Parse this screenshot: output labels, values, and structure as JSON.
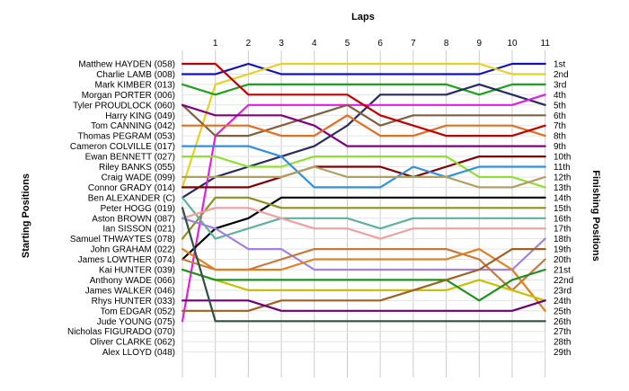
{
  "chart_data": {
    "type": "line",
    "title": "",
    "xlabel": "Laps",
    "ylabel_left": "Starting Positions",
    "ylabel_right": "Finishing Positions",
    "x": [
      0,
      1,
      2,
      3,
      4,
      5,
      6,
      7,
      8,
      9,
      10,
      11
    ],
    "x_tick_labels": [
      "1",
      "2",
      "3",
      "4",
      "5",
      "6",
      "7",
      "8",
      "9",
      "10",
      "11"
    ],
    "y_range": [
      1,
      29
    ],
    "y_inverted": true,
    "grid": true,
    "starting_positions": [
      "Matthew HAYDEN (058)",
      "Charlie LAMB (008)",
      "Mark KIMBER (013)",
      "Morgan PORTER (006)",
      "Tyler PROUDLOCK (060)",
      "Harry KING (049)",
      "Tom CANNING (042)",
      "Thomas PEGRAM (053)",
      "Cameron COLVILLE (017)",
      "Ewan BENNETT (027)",
      "Riley BANKS (055)",
      "Craig WADE (099)",
      "Connor GRADY (014)",
      "Ben ALEXANDER (C)",
      "Peter HOGG (019)",
      "Aston BROWN (087)",
      "Ian SISSON (021)",
      "Samuel THWAYTES (078)",
      "John GRAHAM (022)",
      "James LOWTHER (074)",
      "Kai HUNTER (039)",
      "Anthony WADE (066)",
      "James WALKER (046)",
      "Rhys HUNTER (033)",
      "Tom EDGAR (052)",
      "Jude YOUNG (075)",
      "Nicholas FIGURADO (070)",
      "Oliver CLARKE (062)",
      "Alex LLOYD (048)"
    ],
    "finishing_positions": [
      "1st",
      "2nd",
      "3rd",
      "4th",
      "5th",
      "6th",
      "7th",
      "8th",
      "9th",
      "10th",
      "11th",
      "12th",
      "13th",
      "14th",
      "15th",
      "16th",
      "17th",
      "18th",
      "19th",
      "20th",
      "21st",
      "22nd",
      "23rd",
      "24th",
      "25th",
      "26th",
      "27th",
      "28th",
      "29th"
    ],
    "series": [
      {
        "color": "#1010c0",
        "values": [
          2,
          2,
          1,
          2,
          2,
          2,
          2,
          2,
          2,
          2,
          1,
          1
        ]
      },
      {
        "color": "#e8d020",
        "values": [
          13,
          3,
          2,
          1,
          1,
          1,
          1,
          1,
          1,
          1,
          2,
          2
        ]
      },
      {
        "color": "#20a020",
        "values": [
          3,
          4,
          3,
          3,
          3,
          3,
          3,
          3,
          3,
          4,
          3,
          3
        ]
      },
      {
        "color": "#2a2a60",
        "values": [
          14,
          12,
          11,
          10,
          9,
          7,
          4,
          4,
          4,
          3,
          4,
          5
        ]
      },
      {
        "color": "#e020e0",
        "values": [
          26,
          8,
          5,
          5,
          5,
          5,
          5,
          5,
          5,
          5,
          5,
          4
        ]
      },
      {
        "color": "#806040",
        "values": [
          5,
          8,
          8,
          7,
          6,
          5,
          7,
          6,
          6,
          6,
          6,
          6
        ]
      },
      {
        "color": "#800080",
        "values": [
          5,
          6,
          6,
          6,
          7,
          9,
          9,
          9,
          9,
          9,
          9,
          9
        ]
      },
      {
        "color": "#e07020",
        "values": [
          7,
          7,
          7,
          8,
          8,
          6,
          8,
          8,
          7,
          7,
          7,
          8
        ]
      },
      {
        "color": "#c00000",
        "values": [
          1,
          1,
          4,
          4,
          4,
          4,
          6,
          7,
          8,
          8,
          8,
          7
        ]
      },
      {
        "color": "#800000",
        "values": [
          13,
          13,
          13,
          12,
          11,
          11,
          11,
          12,
          11,
          10,
          10,
          10
        ]
      },
      {
        "color": "#90e030",
        "values": [
          10,
          10,
          11,
          11,
          10,
          10,
          10,
          10,
          10,
          12,
          12,
          13
        ]
      },
      {
        "color": "#3090e0",
        "values": [
          9,
          9,
          9,
          10,
          13,
          13,
          13,
          11,
          12,
          11,
          11,
          11
        ]
      },
      {
        "color": "#b0a060",
        "values": [
          12,
          12,
          12,
          12,
          11,
          12,
          12,
          12,
          12,
          13,
          13,
          12
        ]
      },
      {
        "color": "#000000",
        "values": [
          20,
          17,
          16,
          14,
          14,
          14,
          14,
          14,
          14,
          14,
          14,
          14
        ]
      },
      {
        "color": "#909020",
        "values": [
          18,
          14,
          14,
          15,
          15,
          15,
          15,
          15,
          15,
          15,
          15,
          15
        ]
      },
      {
        "color": "#60b0a0",
        "values": [
          14,
          18,
          17,
          16,
          16,
          16,
          17,
          16,
          16,
          16,
          16,
          16
        ]
      },
      {
        "color": "#f0a0a0",
        "values": [
          16,
          15,
          15,
          16,
          17,
          17,
          18,
          17,
          17,
          17,
          17,
          17
        ]
      },
      {
        "color": "#a080e0",
        "values": [
          16,
          17,
          19,
          19,
          21,
          21,
          21,
          21,
          21,
          21,
          21,
          18
        ]
      },
      {
        "color": "#c87838",
        "values": [
          20,
          21,
          21,
          20,
          19,
          19,
          19,
          19,
          19,
          20,
          23,
          20
        ]
      },
      {
        "color": "#e08020",
        "values": [
          19,
          21,
          21,
          21,
          20,
          20,
          20,
          20,
          20,
          19,
          21,
          25
        ]
      },
      {
        "color": "#c8c000",
        "values": [
          21,
          22,
          23,
          23,
          23,
          23,
          23,
          23,
          23,
          22,
          23,
          24
        ]
      },
      {
        "color": "#209020",
        "values": [
          21,
          22,
          22,
          22,
          22,
          22,
          22,
          22,
          22,
          24,
          22,
          21
        ]
      },
      {
        "color": "#a06020",
        "values": [
          25,
          25,
          25,
          24,
          24,
          24,
          24,
          23,
          22,
          21,
          19,
          19
        ]
      },
      {
        "color": "#700070",
        "values": [
          24,
          24,
          24,
          25,
          25,
          25,
          25,
          25,
          25,
          25,
          25,
          24
        ]
      },
      {
        "color": "#305040",
        "values": [
          15,
          26,
          26,
          26,
          26,
          26,
          26,
          26,
          26,
          26,
          26,
          26
        ]
      }
    ]
  }
}
